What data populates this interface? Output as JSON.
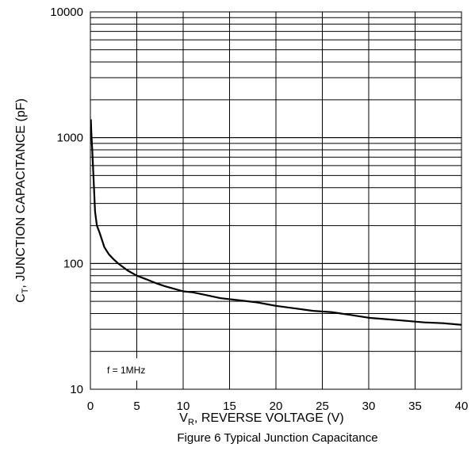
{
  "chart_data": {
    "type": "line",
    "caption": "Figure 6 Typical Junction Capacitance",
    "annotation": "f = 1MHz",
    "xlabel": {
      "prefix": "V",
      "sub": "R",
      "suffix": ", REVERSE VOLTAGE (V)"
    },
    "ylabel": {
      "prefix": "C",
      "sub": "T",
      "suffix": ", JUNCTION CAPACITANCE (pF)"
    },
    "x_scale": "linear",
    "y_scale": "log",
    "xlim": [
      0,
      40
    ],
    "ylim": [
      10,
      10000
    ],
    "x_ticks": [
      "0",
      "5",
      "10",
      "15",
      "20",
      "25",
      "30",
      "35",
      "40"
    ],
    "y_ticks": [
      "10",
      "100",
      "1000",
      "10000"
    ],
    "grid": true,
    "series": [
      {
        "x": [
          0.05,
          0.1,
          0.2,
          0.3,
          0.4,
          0.5,
          0.7,
          1.0,
          1.5,
          2,
          2.5,
          3,
          4,
          5,
          6,
          7,
          8,
          9,
          10,
          11,
          12,
          14,
          16,
          18,
          20,
          22,
          24,
          26,
          28,
          30,
          32,
          34,
          36,
          38,
          40
        ],
        "y": [
          1400,
          1100,
          800,
          550,
          380,
          260,
          200,
          175,
          135,
          118,
          108,
          100,
          88,
          80,
          75,
          70,
          66,
          63,
          60,
          59,
          57,
          53,
          51,
          49,
          46,
          44,
          42,
          41,
          39,
          37,
          36,
          35,
          34,
          33.5,
          32.5
        ]
      }
    ]
  }
}
